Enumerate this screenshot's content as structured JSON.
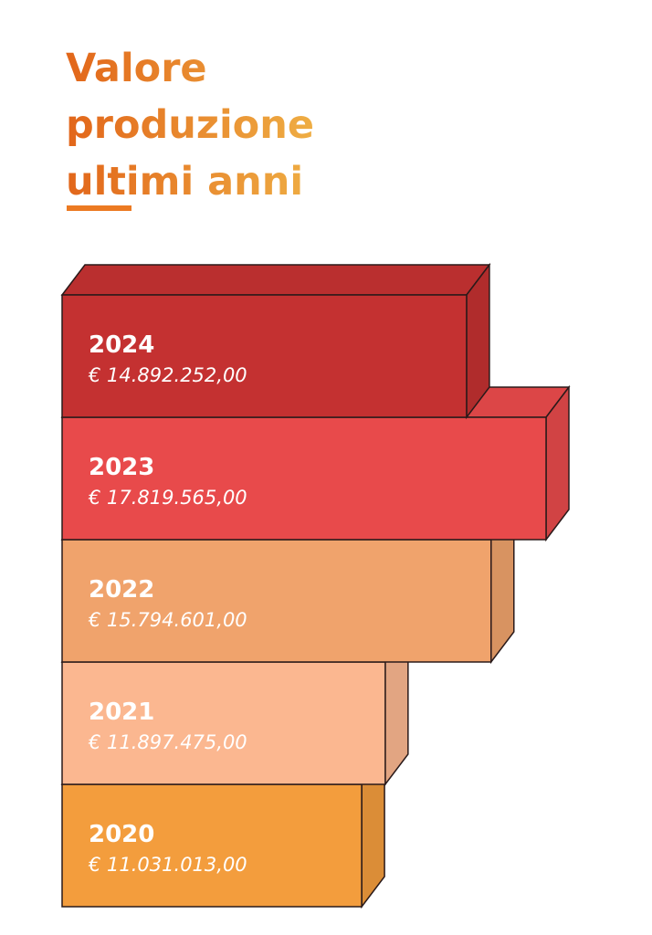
{
  "chart_data": {
    "type": "bar3d",
    "title": "Valore produzione ultimi anni",
    "categories": [
      "2024",
      "2023",
      "2022",
      "2021",
      "2020"
    ],
    "values": [
      14892252,
      17819565,
      15794601,
      11897475,
      11031013
    ],
    "value_labels": [
      "€ 14.892.252,00",
      "€ 17.819.565,00",
      "€ 15.794.601,00",
      "€ 11.897.475,00",
      "€ 11.031.013,00"
    ],
    "colors": [
      "#c43131",
      "#e84a4b",
      "#f0a36c",
      "#fbb790",
      "#f39d3d"
    ]
  }
}
